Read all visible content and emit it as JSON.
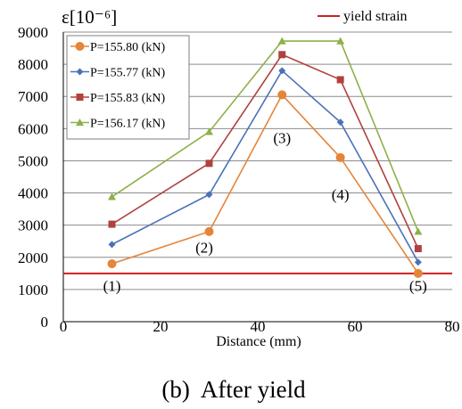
{
  "chart_data": {
    "type": "line",
    "caption": "(b)  After yield",
    "ylabel": "ε[10⁻⁶]",
    "xlabel": "Distance (mm)",
    "xlim": [
      0,
      80
    ],
    "ylim": [
      0,
      9000
    ],
    "x_ticks": [
      "0",
      "20",
      "40",
      "60",
      "80"
    ],
    "y_ticks": [
      "0",
      "1000",
      "2000",
      "3000",
      "4000",
      "5000",
      "6000",
      "7000",
      "8000",
      "9000"
    ],
    "grid": "horizontal",
    "legend_position": "top-left",
    "x": [
      10,
      30,
      45,
      57,
      73
    ],
    "series": [
      {
        "name": "P=155.80 (kN)",
        "color": "#e4853a",
        "marker": "circle",
        "values": [
          1800,
          2800,
          7050,
          5100,
          1500
        ]
      },
      {
        "name": "P=155.77 (kN)",
        "color": "#4a72b8",
        "marker": "diamond",
        "values": [
          2400,
          3950,
          7800,
          6200,
          1850
        ]
      },
      {
        "name": "P=155.83 (kN)",
        "color": "#b0413e",
        "marker": "square",
        "values": [
          3030,
          4920,
          8300,
          7520,
          2270
        ]
      },
      {
        "name": "P=156.17 (kN)",
        "color": "#8eb04a",
        "marker": "triangle",
        "values": [
          3880,
          5900,
          8720,
          8720,
          2800
        ]
      }
    ],
    "reference_line": {
      "name": "yield strain",
      "value": 1500,
      "color": "#cc2020"
    },
    "annotations": [
      {
        "text": "(1)",
        "x": 10,
        "y": 950
      },
      {
        "text": "(2)",
        "x": 29,
        "y": 2150
      },
      {
        "text": "(3)",
        "x": 45,
        "y": 5550
      },
      {
        "text": "(4)",
        "x": 57,
        "y": 3800
      },
      {
        "text": "(5)",
        "x": 73,
        "y": 950
      }
    ]
  }
}
